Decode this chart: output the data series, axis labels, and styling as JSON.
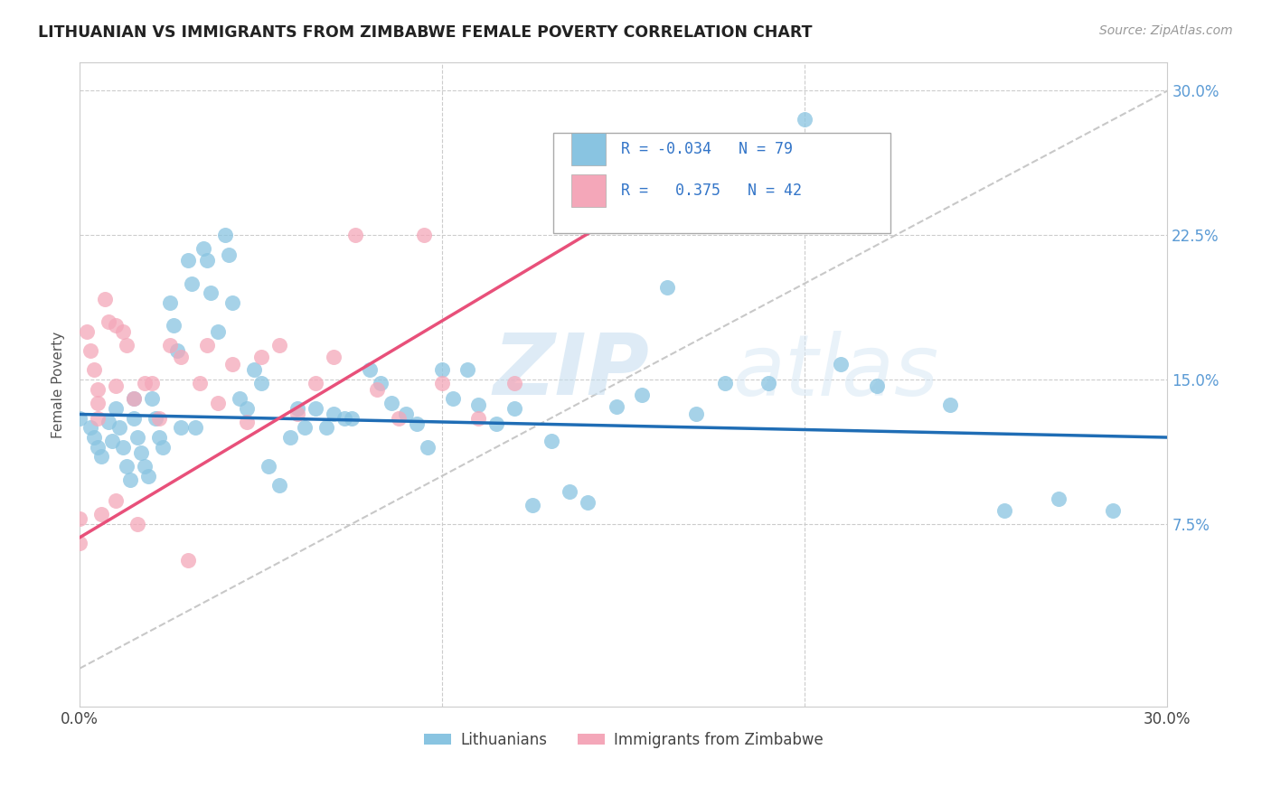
{
  "title": "LITHUANIAN VS IMMIGRANTS FROM ZIMBABWE FEMALE POVERTY CORRELATION CHART",
  "source": "Source: ZipAtlas.com",
  "ylabel": "Female Poverty",
  "ytick_vals": [
    0.075,
    0.15,
    0.225,
    0.3
  ],
  "ytick_labels": [
    "7.5%",
    "15.0%",
    "22.5%",
    "30.0%"
  ],
  "legend_label_1": "Lithuanians",
  "legend_label_2": "Immigrants from Zimbabwe",
  "watermark": "ZIPatlas",
  "color_blue": "#89c4e1",
  "color_pink": "#f4a7b9",
  "color_blue_line": "#1f6db5",
  "color_pink_line": "#e8507a",
  "color_dashed": "#c8c8c8",
  "xlim": [
    0.0,
    0.3
  ],
  "ylim": [
    -0.02,
    0.315
  ],
  "blue_scatter_x": [
    0.0,
    0.003,
    0.004,
    0.005,
    0.006,
    0.008,
    0.009,
    0.01,
    0.011,
    0.012,
    0.013,
    0.014,
    0.015,
    0.015,
    0.016,
    0.017,
    0.018,
    0.019,
    0.02,
    0.021,
    0.022,
    0.023,
    0.025,
    0.026,
    0.027,
    0.028,
    0.03,
    0.031,
    0.032,
    0.034,
    0.035,
    0.036,
    0.038,
    0.04,
    0.041,
    0.042,
    0.044,
    0.046,
    0.048,
    0.05,
    0.052,
    0.055,
    0.058,
    0.06,
    0.062,
    0.065,
    0.068,
    0.07,
    0.073,
    0.075,
    0.08,
    0.083,
    0.086,
    0.09,
    0.093,
    0.096,
    0.1,
    0.103,
    0.107,
    0.11,
    0.115,
    0.12,
    0.125,
    0.13,
    0.135,
    0.14,
    0.148,
    0.155,
    0.162,
    0.17,
    0.178,
    0.19,
    0.2,
    0.21,
    0.22,
    0.24,
    0.255,
    0.27,
    0.285
  ],
  "blue_scatter_y": [
    0.13,
    0.125,
    0.12,
    0.115,
    0.11,
    0.128,
    0.118,
    0.135,
    0.125,
    0.115,
    0.105,
    0.098,
    0.14,
    0.13,
    0.12,
    0.112,
    0.105,
    0.1,
    0.14,
    0.13,
    0.12,
    0.115,
    0.19,
    0.178,
    0.165,
    0.125,
    0.212,
    0.2,
    0.125,
    0.218,
    0.212,
    0.195,
    0.175,
    0.225,
    0.215,
    0.19,
    0.14,
    0.135,
    0.155,
    0.148,
    0.105,
    0.095,
    0.12,
    0.135,
    0.125,
    0.135,
    0.125,
    0.132,
    0.13,
    0.13,
    0.155,
    0.148,
    0.138,
    0.132,
    0.127,
    0.115,
    0.155,
    0.14,
    0.155,
    0.137,
    0.127,
    0.135,
    0.085,
    0.118,
    0.092,
    0.086,
    0.136,
    0.142,
    0.198,
    0.132,
    0.148,
    0.148,
    0.285,
    0.158,
    0.147,
    0.137,
    0.082,
    0.088,
    0.082
  ],
  "pink_scatter_x": [
    0.0,
    0.0,
    0.002,
    0.003,
    0.004,
    0.005,
    0.005,
    0.005,
    0.006,
    0.007,
    0.008,
    0.01,
    0.01,
    0.01,
    0.012,
    0.013,
    0.015,
    0.016,
    0.018,
    0.02,
    0.022,
    0.025,
    0.028,
    0.03,
    0.033,
    0.035,
    0.038,
    0.042,
    0.046,
    0.05,
    0.055,
    0.06,
    0.065,
    0.07,
    0.076,
    0.082,
    0.088,
    0.095,
    0.1,
    0.11,
    0.12,
    0.135
  ],
  "pink_scatter_y": [
    0.078,
    0.065,
    0.175,
    0.165,
    0.155,
    0.145,
    0.138,
    0.13,
    0.08,
    0.192,
    0.18,
    0.178,
    0.147,
    0.087,
    0.175,
    0.168,
    0.14,
    0.075,
    0.148,
    0.148,
    0.13,
    0.168,
    0.162,
    0.056,
    0.148,
    0.168,
    0.138,
    0.158,
    0.128,
    0.162,
    0.168,
    0.132,
    0.148,
    0.162,
    0.225,
    0.145,
    0.13,
    0.225,
    0.148,
    0.13,
    0.148,
    0.238
  ],
  "blue_trend_x": [
    0.0,
    0.3
  ],
  "blue_trend_y": [
    0.132,
    0.12
  ],
  "pink_trend_x": [
    0.0,
    0.175
  ],
  "pink_trend_y": [
    0.068,
    0.265
  ],
  "dashed_trend_x": [
    0.0,
    0.3
  ],
  "dashed_trend_y": [
    0.0,
    0.3
  ]
}
